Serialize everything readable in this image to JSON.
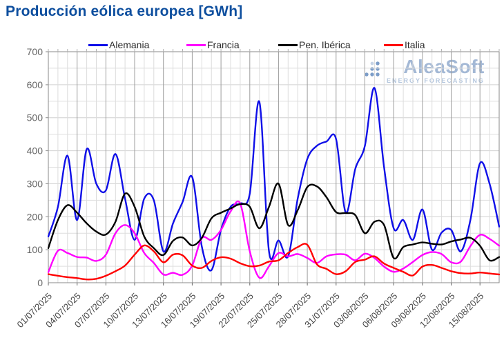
{
  "header": {
    "title": "Producción eólica europea [GWh]",
    "title_color": "#0d4e9e"
  },
  "watermark": {
    "name": "AleaSoft",
    "tagline": "ENERGY FORECASTING",
    "color": "#a3b8d5"
  },
  "chart_data": {
    "type": "line",
    "title": "Producción eólica europea [GWh]",
    "ylabel": "",
    "xlabel": "",
    "ylim": [
      0,
      700
    ],
    "y_ticks": [
      0,
      100,
      200,
      300,
      400,
      500,
      600,
      700
    ],
    "y_minor_step": 50,
    "grid": true,
    "legend_position": "top",
    "n_points": 48,
    "x_start_date": "01/07/2025",
    "x_end_date": "17/08/2025",
    "x_tick_step_days": 3,
    "x_tick_labels": [
      "01/07/2025",
      "04/07/2025",
      "07/07/2025",
      "10/07/2025",
      "13/07/2025",
      "16/07/2025",
      "19/07/2025",
      "22/07/2025",
      "25/07/2025",
      "28/07/2025",
      "31/07/2025",
      "03/08/2025",
      "06/08/2025",
      "09/08/2025",
      "12/08/2025",
      "15/08/2025"
    ],
    "series": [
      {
        "name": "Alemania",
        "color": "#0f0fe8",
        "values": [
          140,
          230,
          385,
          190,
          405,
          300,
          280,
          390,
          255,
          130,
          255,
          250,
          95,
          180,
          245,
          320,
          110,
          38,
          160,
          230,
          240,
          270,
          548,
          95,
          128,
          80,
          255,
          375,
          415,
          428,
          435,
          213,
          345,
          415,
          590,
          350,
          165,
          190,
          130,
          222,
          100,
          152,
          160,
          95,
          190,
          362,
          300,
          170
        ]
      },
      {
        "name": "Francia",
        "color": "#ff00ff",
        "values": [
          32,
          97,
          90,
          78,
          76,
          66,
          85,
          150,
          175,
          150,
          90,
          60,
          25,
          30,
          24,
          52,
          135,
          130,
          160,
          216,
          240,
          95,
          15,
          50,
          90,
          80,
          87,
          75,
          60,
          80,
          86,
          85,
          68,
          88,
          75,
          49,
          33,
          43,
          63,
          84,
          93,
          87,
          62,
          64,
          111,
          145,
          133,
          112
        ]
      },
      {
        "name": "Pen. Ibérica",
        "color": "#000000",
        "values": [
          105,
          190,
          235,
          212,
          180,
          155,
          146,
          185,
          270,
          230,
          140,
          105,
          84,
          127,
          137,
          113,
          136,
          195,
          212,
          225,
          238,
          230,
          165,
          230,
          300,
          175,
          220,
          290,
          292,
          259,
          214,
          211,
          205,
          150,
          185,
          175,
          75,
          108,
          116,
          122,
          118,
          116,
          125,
          131,
          136,
          112,
          68,
          78
        ]
      },
      {
        "name": "Italia",
        "color": "#ff0000",
        "values": [
          26,
          21,
          17,
          14,
          10,
          12,
          21,
          35,
          52,
          85,
          113,
          95,
          62,
          85,
          83,
          52,
          45,
          66,
          77,
          73,
          59,
          50,
          52,
          64,
          68,
          90,
          108,
          115,
          56,
          42,
          26,
          35,
          63,
          70,
          80,
          58,
          45,
          33,
          22,
          49,
          54,
          45,
          35,
          29,
          28,
          31,
          28,
          25
        ]
      }
    ]
  }
}
